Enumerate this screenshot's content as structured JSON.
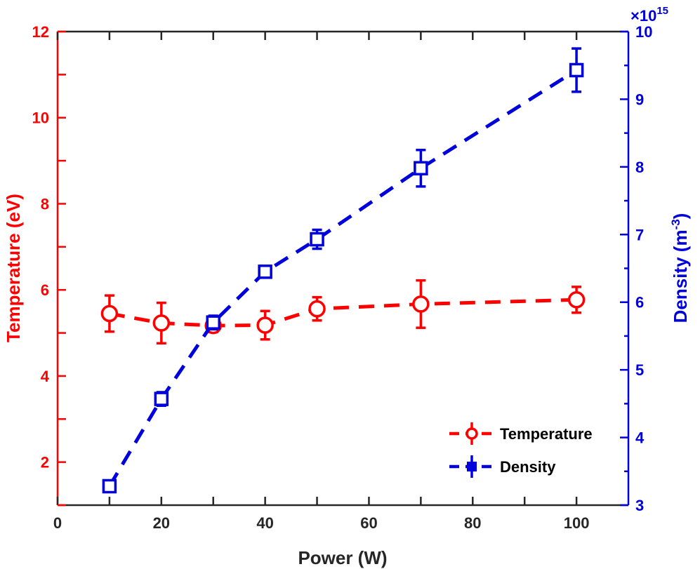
{
  "chart_data": {
    "type": "line",
    "title": "",
    "xlabel": "Power (W)",
    "x": [
      10,
      20,
      30,
      40,
      50,
      70,
      100
    ],
    "xlim": [
      0,
      110
    ],
    "xticks": [
      0,
      20,
      40,
      60,
      80,
      100
    ],
    "y_left": {
      "label": "Temperature (eV)",
      "lim": [
        1,
        12
      ],
      "ticks": [
        2,
        4,
        6,
        8,
        10,
        12
      ],
      "color": "#ff0000"
    },
    "y_right": {
      "label_main": "Density (m",
      "label_sup": "-3",
      "label_end": ")",
      "lim": [
        3,
        10
      ],
      "ticks": [
        3,
        4,
        5,
        6,
        7,
        8,
        9,
        10
      ],
      "color": "#0000dd",
      "exponent_base": "×10",
      "exponent_power": "15"
    },
    "series": [
      {
        "name": "Temperature",
        "axis": "left",
        "marker": "circle",
        "color": "#ff0000",
        "values": [
          5.45,
          5.23,
          5.17,
          5.18,
          5.56,
          5.67,
          5.77
        ],
        "errors": [
          0.42,
          0.47,
          0.15,
          0.33,
          0.27,
          0.55,
          0.3
        ]
      },
      {
        "name": "Density",
        "axis": "right",
        "marker": "square",
        "color": "#0000dd",
        "values": [
          3.28,
          4.57,
          5.7,
          6.45,
          6.93,
          7.98,
          9.43
        ],
        "errors": [
          0.07,
          0.1,
          0.1,
          0.08,
          0.14,
          0.27,
          0.32
        ]
      }
    ],
    "legend": {
      "position": "bottom-right",
      "entries": [
        "Temperature",
        "Density"
      ]
    }
  }
}
